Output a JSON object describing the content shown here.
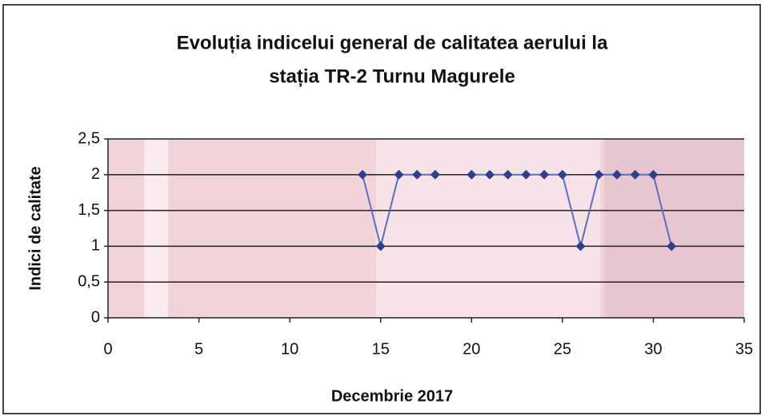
{
  "chart_data": {
    "type": "line",
    "title": [
      "Evoluția indicelui general de calitatea aerului la",
      "stația TR-2 Turnu Magurele"
    ],
    "xlabel": "Decembrie 2017",
    "ylabel": "Indici de calitate",
    "x": [
      14,
      15,
      16,
      17,
      18,
      19,
      20,
      21,
      22,
      23,
      24,
      25,
      26,
      27,
      28,
      29,
      30,
      31
    ],
    "series": [
      {
        "name": "Indici de calitate",
        "color": "#2e3f8f",
        "values": [
          2,
          1,
          2,
          2,
          2,
          null,
          2,
          2,
          2,
          2,
          2,
          2,
          1,
          2,
          2,
          2,
          2,
          1
        ]
      }
    ],
    "xlim": [
      0,
      35
    ],
    "xticks": [
      0,
      5,
      10,
      15,
      20,
      25,
      30,
      35
    ],
    "ylim": [
      0,
      2.5
    ],
    "yticks": [
      0,
      {
        "value": 0.5,
        "label": "0,5"
      },
      1,
      {
        "value": 1.5,
        "label": "1,5"
      },
      2,
      {
        "value": 2.5,
        "label": "2,5"
      }
    ],
    "grid": true
  }
}
